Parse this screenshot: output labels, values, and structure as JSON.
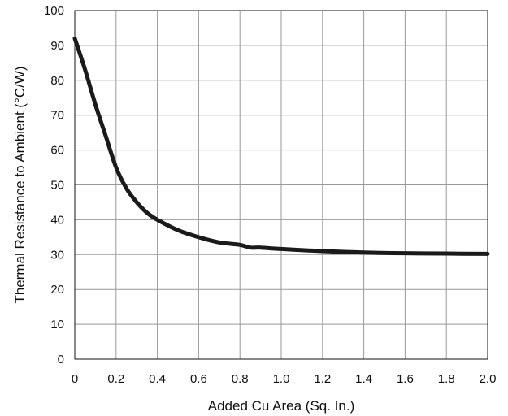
{
  "chart_data": {
    "type": "line",
    "title": "",
    "xlabel": "Added Cu Area (Sq. In.)",
    "ylabel": "Thermal Resistance to Ambient (°C/W)",
    "xlim": [
      0,
      2.0
    ],
    "ylim": [
      0,
      100
    ],
    "grid": true,
    "x_ticks": [
      "0",
      "0.2",
      "0.4",
      "0.6",
      "0.8",
      "1.0",
      "1.2",
      "1.4",
      "1.6",
      "1.8",
      "2.0"
    ],
    "y_ticks": [
      "0",
      "10",
      "20",
      "30",
      "40",
      "50",
      "60",
      "70",
      "80",
      "90",
      "100"
    ],
    "series": [
      {
        "color": "#1a1a1a",
        "x": [
          0,
          0.05,
          0.1,
          0.15,
          0.2,
          0.25,
          0.3,
          0.35,
          0.4,
          0.5,
          0.6,
          0.7,
          0.8,
          0.85,
          0.9,
          1.0,
          1.2,
          1.4,
          1.6,
          1.8,
          2.0
        ],
        "y": [
          92,
          83,
          73,
          64,
          55,
          49,
          45,
          42,
          40,
          37,
          35,
          33.5,
          32.8,
          32,
          32,
          31.6,
          31,
          30.6,
          30.4,
          30.3,
          30.2
        ]
      }
    ]
  }
}
